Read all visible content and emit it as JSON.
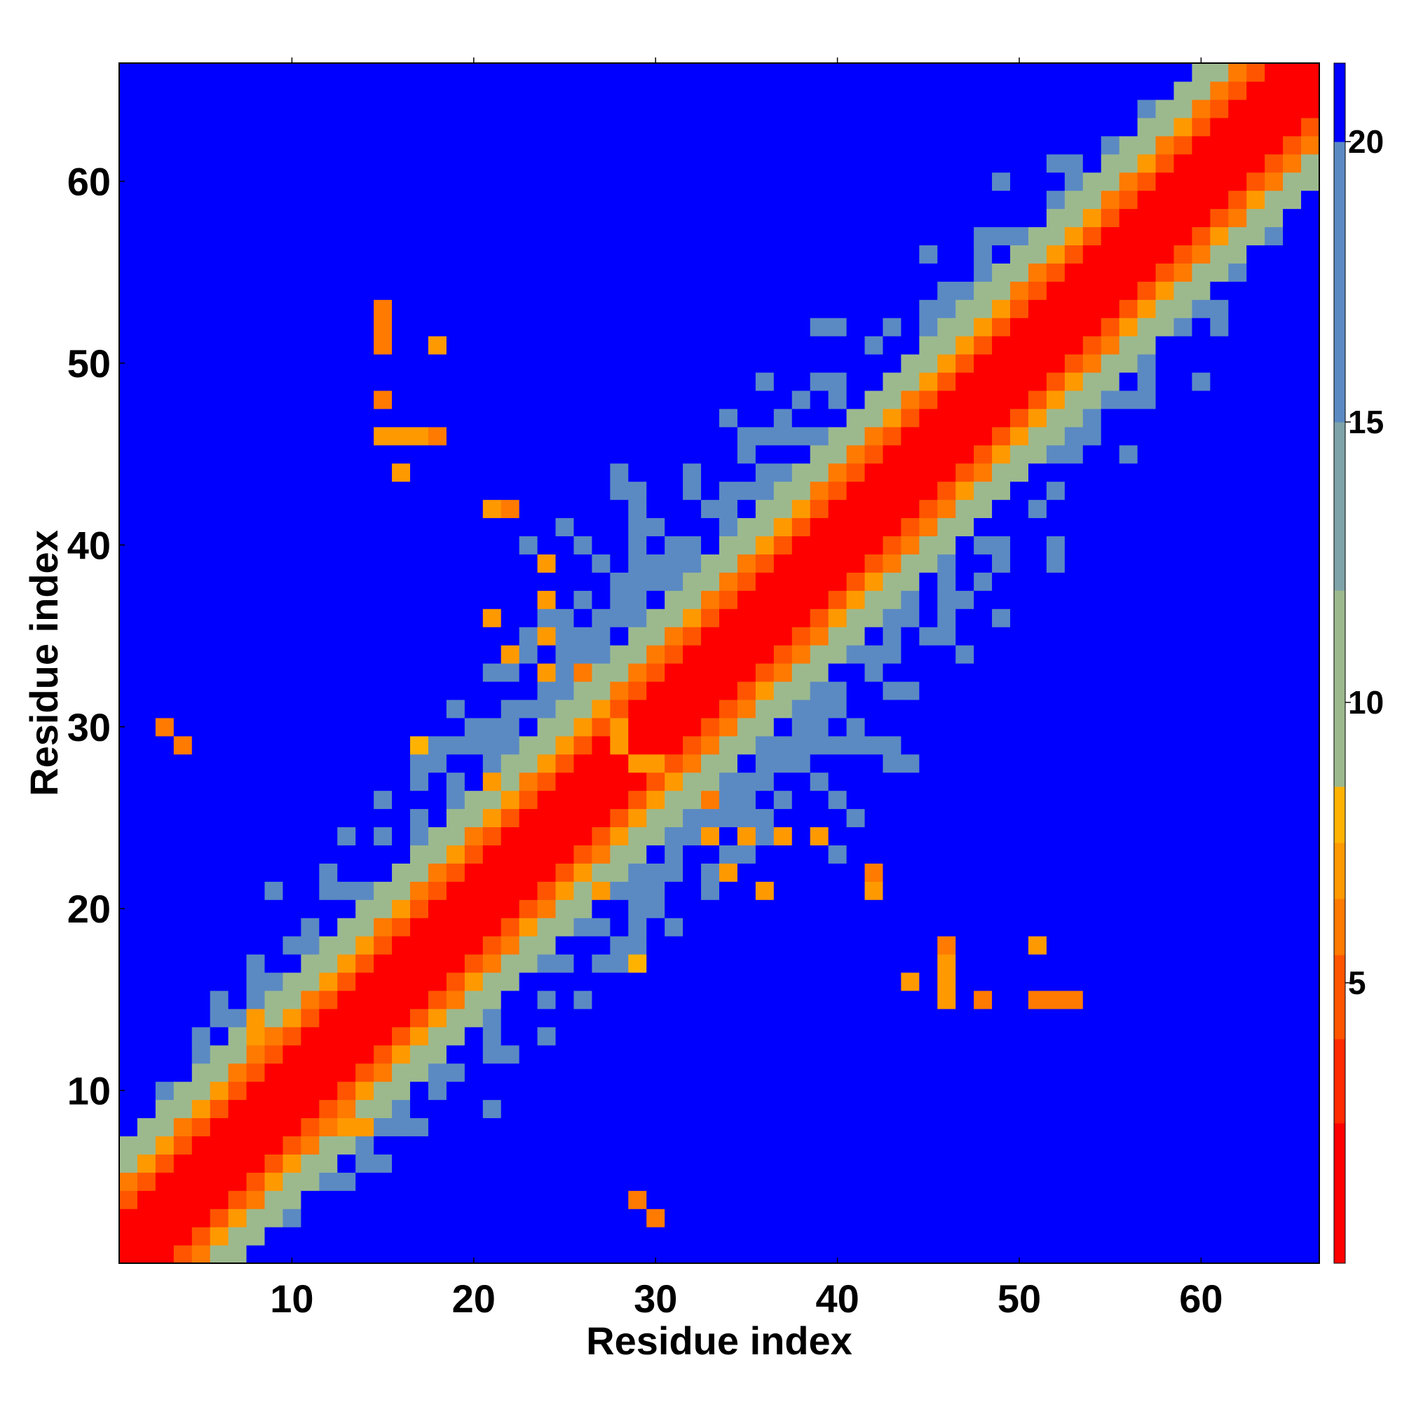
{
  "chart_data": {
    "type": "heatmap",
    "title": "",
    "xlabel": "Residue index",
    "ylabel": "Residue index",
    "n": 66,
    "xlim": [
      0.5,
      66.5
    ],
    "ylim": [
      0.5,
      66.5
    ],
    "x_ticks": [
      10,
      20,
      30,
      40,
      50,
      60
    ],
    "y_ticks": [
      10,
      20,
      30,
      40,
      50,
      60
    ],
    "x_tick_labels": [
      "10",
      "20",
      "30",
      "40",
      "50",
      "60"
    ],
    "y_tick_labels": [
      "10",
      "20",
      "30",
      "40",
      "50",
      "60"
    ],
    "colorbar": {
      "range": [
        0,
        21.4
      ],
      "ticks": [
        5,
        10,
        15,
        20
      ],
      "tick_labels": [
        "5",
        "10",
        "15",
        "20"
      ],
      "bins": [
        {
          "from": 0,
          "to": 2.5,
          "color": "#ff0000"
        },
        {
          "from": 2.5,
          "to": 4.0,
          "color": "#ff2a00"
        },
        {
          "from": 4.0,
          "to": 5.5,
          "color": "#ff5500"
        },
        {
          "from": 5.5,
          "to": 6.5,
          "color": "#ff7a00"
        },
        {
          "from": 6.5,
          "to": 7.5,
          "color": "#ff9900"
        },
        {
          "from": 7.5,
          "to": 8.5,
          "color": "#ffb300"
        },
        {
          "from": 8.5,
          "to": 12.0,
          "color": "#9cb98e"
        },
        {
          "from": 12.0,
          "to": 15.0,
          "color": "#7ea3a8"
        },
        {
          "from": 15.0,
          "to": 20.0,
          "color": "#5b8ac3"
        },
        {
          "from": 20.0,
          "to": 21.4,
          "color": "#0000ff"
        }
      ]
    },
    "contacts": [
      {
        "i": 3,
        "j": 30,
        "v": 5.5
      },
      {
        "i": 13,
        "j": 8,
        "v": 6.5
      },
      {
        "i": 14,
        "j": 8,
        "v": 7
      },
      {
        "i": 15,
        "j": 51,
        "v": 5.5
      },
      {
        "i": 15,
        "j": 53,
        "v": 5.5
      },
      {
        "i": 16,
        "j": 46,
        "v": 7
      },
      {
        "i": 18,
        "j": 46,
        "v": 6
      },
      {
        "i": 17,
        "j": 29,
        "v": 7.5
      },
      {
        "i": 21,
        "j": 27,
        "v": 7
      },
      {
        "i": 22,
        "j": 42,
        "v": 6.5
      },
      {
        "i": 24,
        "j": 37,
        "v": 7
      },
      {
        "i": 26,
        "j": 33,
        "v": 6
      },
      {
        "i": 29,
        "j": 4,
        "v": 5.5
      },
      {
        "i": 28,
        "j": 29,
        "v": 6.5
      },
      {
        "i": 30,
        "j": 28,
        "v": 7
      },
      {
        "i": 33,
        "j": 24,
        "v": 6.5
      },
      {
        "i": 35,
        "j": 24,
        "v": 7
      },
      {
        "i": 34,
        "j": 22,
        "v": 6.5
      },
      {
        "i": 36,
        "j": 21,
        "v": 7
      },
      {
        "i": 39,
        "j": 24,
        "v": 7
      },
      {
        "i": 42,
        "j": 21,
        "v": 6.5
      },
      {
        "i": 42,
        "j": 22,
        "v": 6
      },
      {
        "i": 44,
        "j": 16,
        "v": 7
      },
      {
        "i": 46,
        "j": 15,
        "v": 7
      },
      {
        "i": 46,
        "j": 17,
        "v": 6.5
      },
      {
        "i": 48,
        "j": 15,
        "v": 5.5
      },
      {
        "i": 52,
        "j": 15,
        "v": 6
      },
      {
        "i": 51,
        "j": 18,
        "v": 7
      }
    ]
  }
}
